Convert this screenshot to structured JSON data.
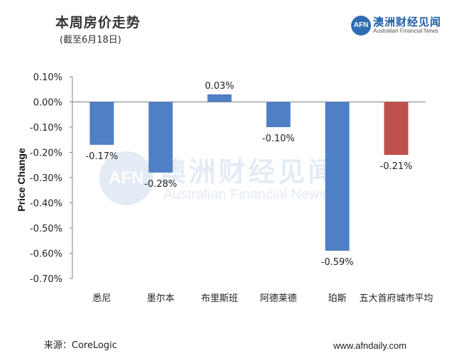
{
  "header": {
    "title": "本周房价走势",
    "subtitle": "(截至6月18日)"
  },
  "logo": {
    "mark": "AFN",
    "name_cn": "澳洲财经见闻",
    "name_en": "Australian Financial News"
  },
  "watermark": {
    "mark": "AFN",
    "name_cn": "澳洲财经见闻",
    "name_en": "Australian Financial News"
  },
  "footer": {
    "source": "来源：CoreLogic",
    "site": "www.afndaily.com"
  },
  "colors": {
    "bar_default": "#4f7fc4",
    "bar_highlight": "#c0504d",
    "axis": "#7f7f7f",
    "brand": "#2f6db3"
  },
  "chart_data": {
    "type": "bar",
    "title": "",
    "xlabel": "",
    "ylabel": "Price Change",
    "categories": [
      "悉尼",
      "墨尔本",
      "布里斯班",
      "阿德莱德",
      "珀斯",
      "五大首府城市平均"
    ],
    "values": [
      -0.17,
      -0.28,
      0.03,
      -0.1,
      -0.59,
      -0.21
    ],
    "value_labels": [
      "-0.17%",
      "-0.28%",
      "0.03%",
      "-0.10%",
      "-0.59%",
      "-0.21%"
    ],
    "highlight_index": 5,
    "ylim": [
      -0.7,
      0.1
    ],
    "yticks": [
      0.1,
      0.0,
      -0.1,
      -0.2,
      -0.3,
      -0.4,
      -0.5,
      -0.6,
      -0.7
    ],
    "ytick_labels": [
      "0.10%",
      "0.00%",
      "-0.10%",
      "-0.20%",
      "-0.30%",
      "-0.40%",
      "-0.50%",
      "-0.60%",
      "-0.70%"
    ],
    "grid": false,
    "legend": "none"
  }
}
